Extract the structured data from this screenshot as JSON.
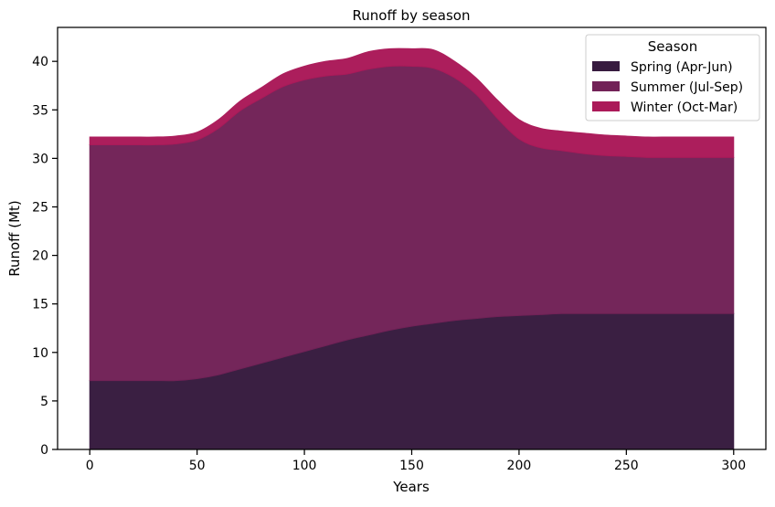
{
  "chart_data": {
    "type": "area",
    "stacked": true,
    "title": "Runoff by season",
    "xlabel": "Years",
    "ylabel": "Runoff (Mt)",
    "xlim": [
      -15,
      315
    ],
    "ylim": [
      0,
      43.5
    ],
    "xticks": [
      0,
      50,
      100,
      150,
      200,
      250,
      300
    ],
    "yticks": [
      0,
      5,
      10,
      15,
      20,
      25,
      30,
      35,
      40
    ],
    "legend": {
      "title": "Season",
      "placement": "top-right"
    },
    "x": [
      0,
      10,
      20,
      30,
      40,
      50,
      60,
      70,
      80,
      90,
      100,
      110,
      120,
      130,
      140,
      150,
      160,
      170,
      180,
      190,
      200,
      210,
      220,
      230,
      240,
      250,
      260,
      270,
      280,
      290,
      300
    ],
    "series": [
      {
        "name": "Spring (Apr-Jun)",
        "color": "#371b3f",
        "values": [
          7.1,
          7.1,
          7.1,
          7.1,
          7.1,
          7.3,
          7.7,
          8.3,
          8.9,
          9.5,
          10.1,
          10.7,
          11.3,
          11.8,
          12.3,
          12.7,
          13.0,
          13.3,
          13.5,
          13.7,
          13.8,
          13.9,
          14.0,
          14.0,
          14.0,
          14.0,
          14.0,
          14.0,
          14.0,
          14.0,
          14.0
        ]
      },
      {
        "name": "Summer (Jul-Sep)",
        "color": "#722257",
        "values": [
          24.3,
          24.3,
          24.3,
          24.3,
          24.4,
          24.6,
          25.4,
          26.6,
          27.3,
          27.9,
          28.0,
          27.8,
          27.4,
          27.4,
          27.2,
          26.8,
          26.3,
          25.0,
          23.1,
          20.4,
          18.2,
          17.2,
          16.8,
          16.5,
          16.3,
          16.2,
          16.1,
          16.1,
          16.1,
          16.1,
          16.1
        ]
      },
      {
        "name": "Winter (Oct-Mar)",
        "color": "#ab1a59",
        "values": [
          0.8,
          0.8,
          0.8,
          0.8,
          0.8,
          0.8,
          0.9,
          1.0,
          1.1,
          1.3,
          1.4,
          1.5,
          1.6,
          1.8,
          1.8,
          1.8,
          1.9,
          1.7,
          1.7,
          1.9,
          2.0,
          2.0,
          2.0,
          2.1,
          2.1,
          2.1,
          2.1,
          2.1,
          2.1,
          2.1,
          2.1
        ]
      }
    ]
  }
}
